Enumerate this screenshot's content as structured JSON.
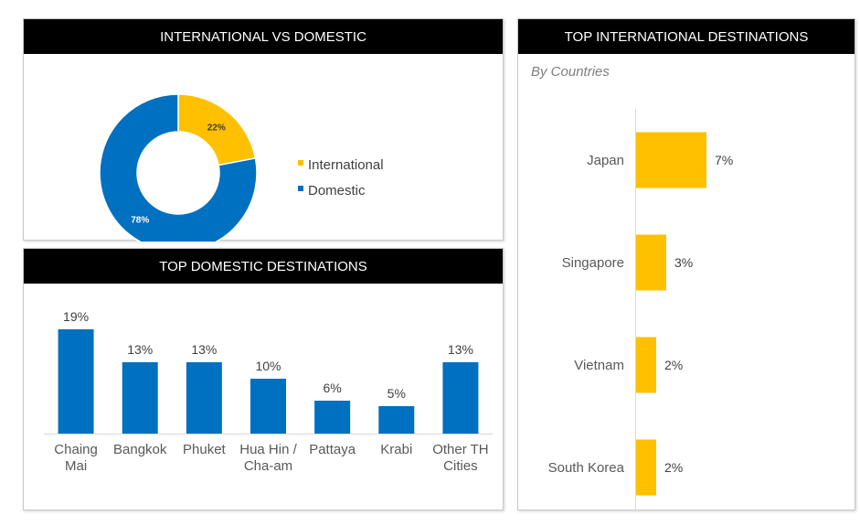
{
  "panels": {
    "intl_vs_dom": {
      "title": "INTERNATIONAL VS DOMESTIC"
    },
    "top_domestic": {
      "title": "TOP DOMESTIC DESTINATIONS"
    },
    "top_international": {
      "title": "TOP INTERNATIONAL DESTINATIONS",
      "subtitle": "By Countries"
    }
  },
  "colors": {
    "international": "#FFC000",
    "domestic": "#0070C0",
    "header_bg": "#000000"
  },
  "chart_data": [
    {
      "type": "pie",
      "style": "donut",
      "slices": [
        {
          "label": "International",
          "value": 22,
          "display": "22%",
          "color": "#FFC000"
        },
        {
          "label": "Domestic",
          "value": 78,
          "display": "78%",
          "color": "#0070C0"
        }
      ],
      "legend": "right"
    },
    {
      "type": "bar",
      "categories": [
        [
          "Chaing",
          "Mai"
        ],
        [
          "Bangkok"
        ],
        [
          "Phuket"
        ],
        [
          "Hua Hin /",
          "Cha-am"
        ],
        [
          "Pattaya"
        ],
        [
          "Krabi"
        ],
        [
          "Other TH",
          "Cities"
        ]
      ],
      "values": [
        19,
        13,
        13,
        10,
        6,
        5,
        13
      ],
      "labels": [
        "19%",
        "13%",
        "13%",
        "10%",
        "6%",
        "5%",
        "13%"
      ],
      "color": "#0070C0",
      "ylim": [
        0,
        20
      ]
    },
    {
      "type": "bar",
      "orientation": "horizontal",
      "categories": [
        "Japan",
        "Singapore",
        "Vietnam",
        "South Korea"
      ],
      "values": [
        7,
        3,
        2,
        2
      ],
      "labels": [
        "7%",
        "3%",
        "2%",
        "2%"
      ],
      "color": "#FFC000",
      "xlim": [
        0,
        14
      ]
    }
  ]
}
